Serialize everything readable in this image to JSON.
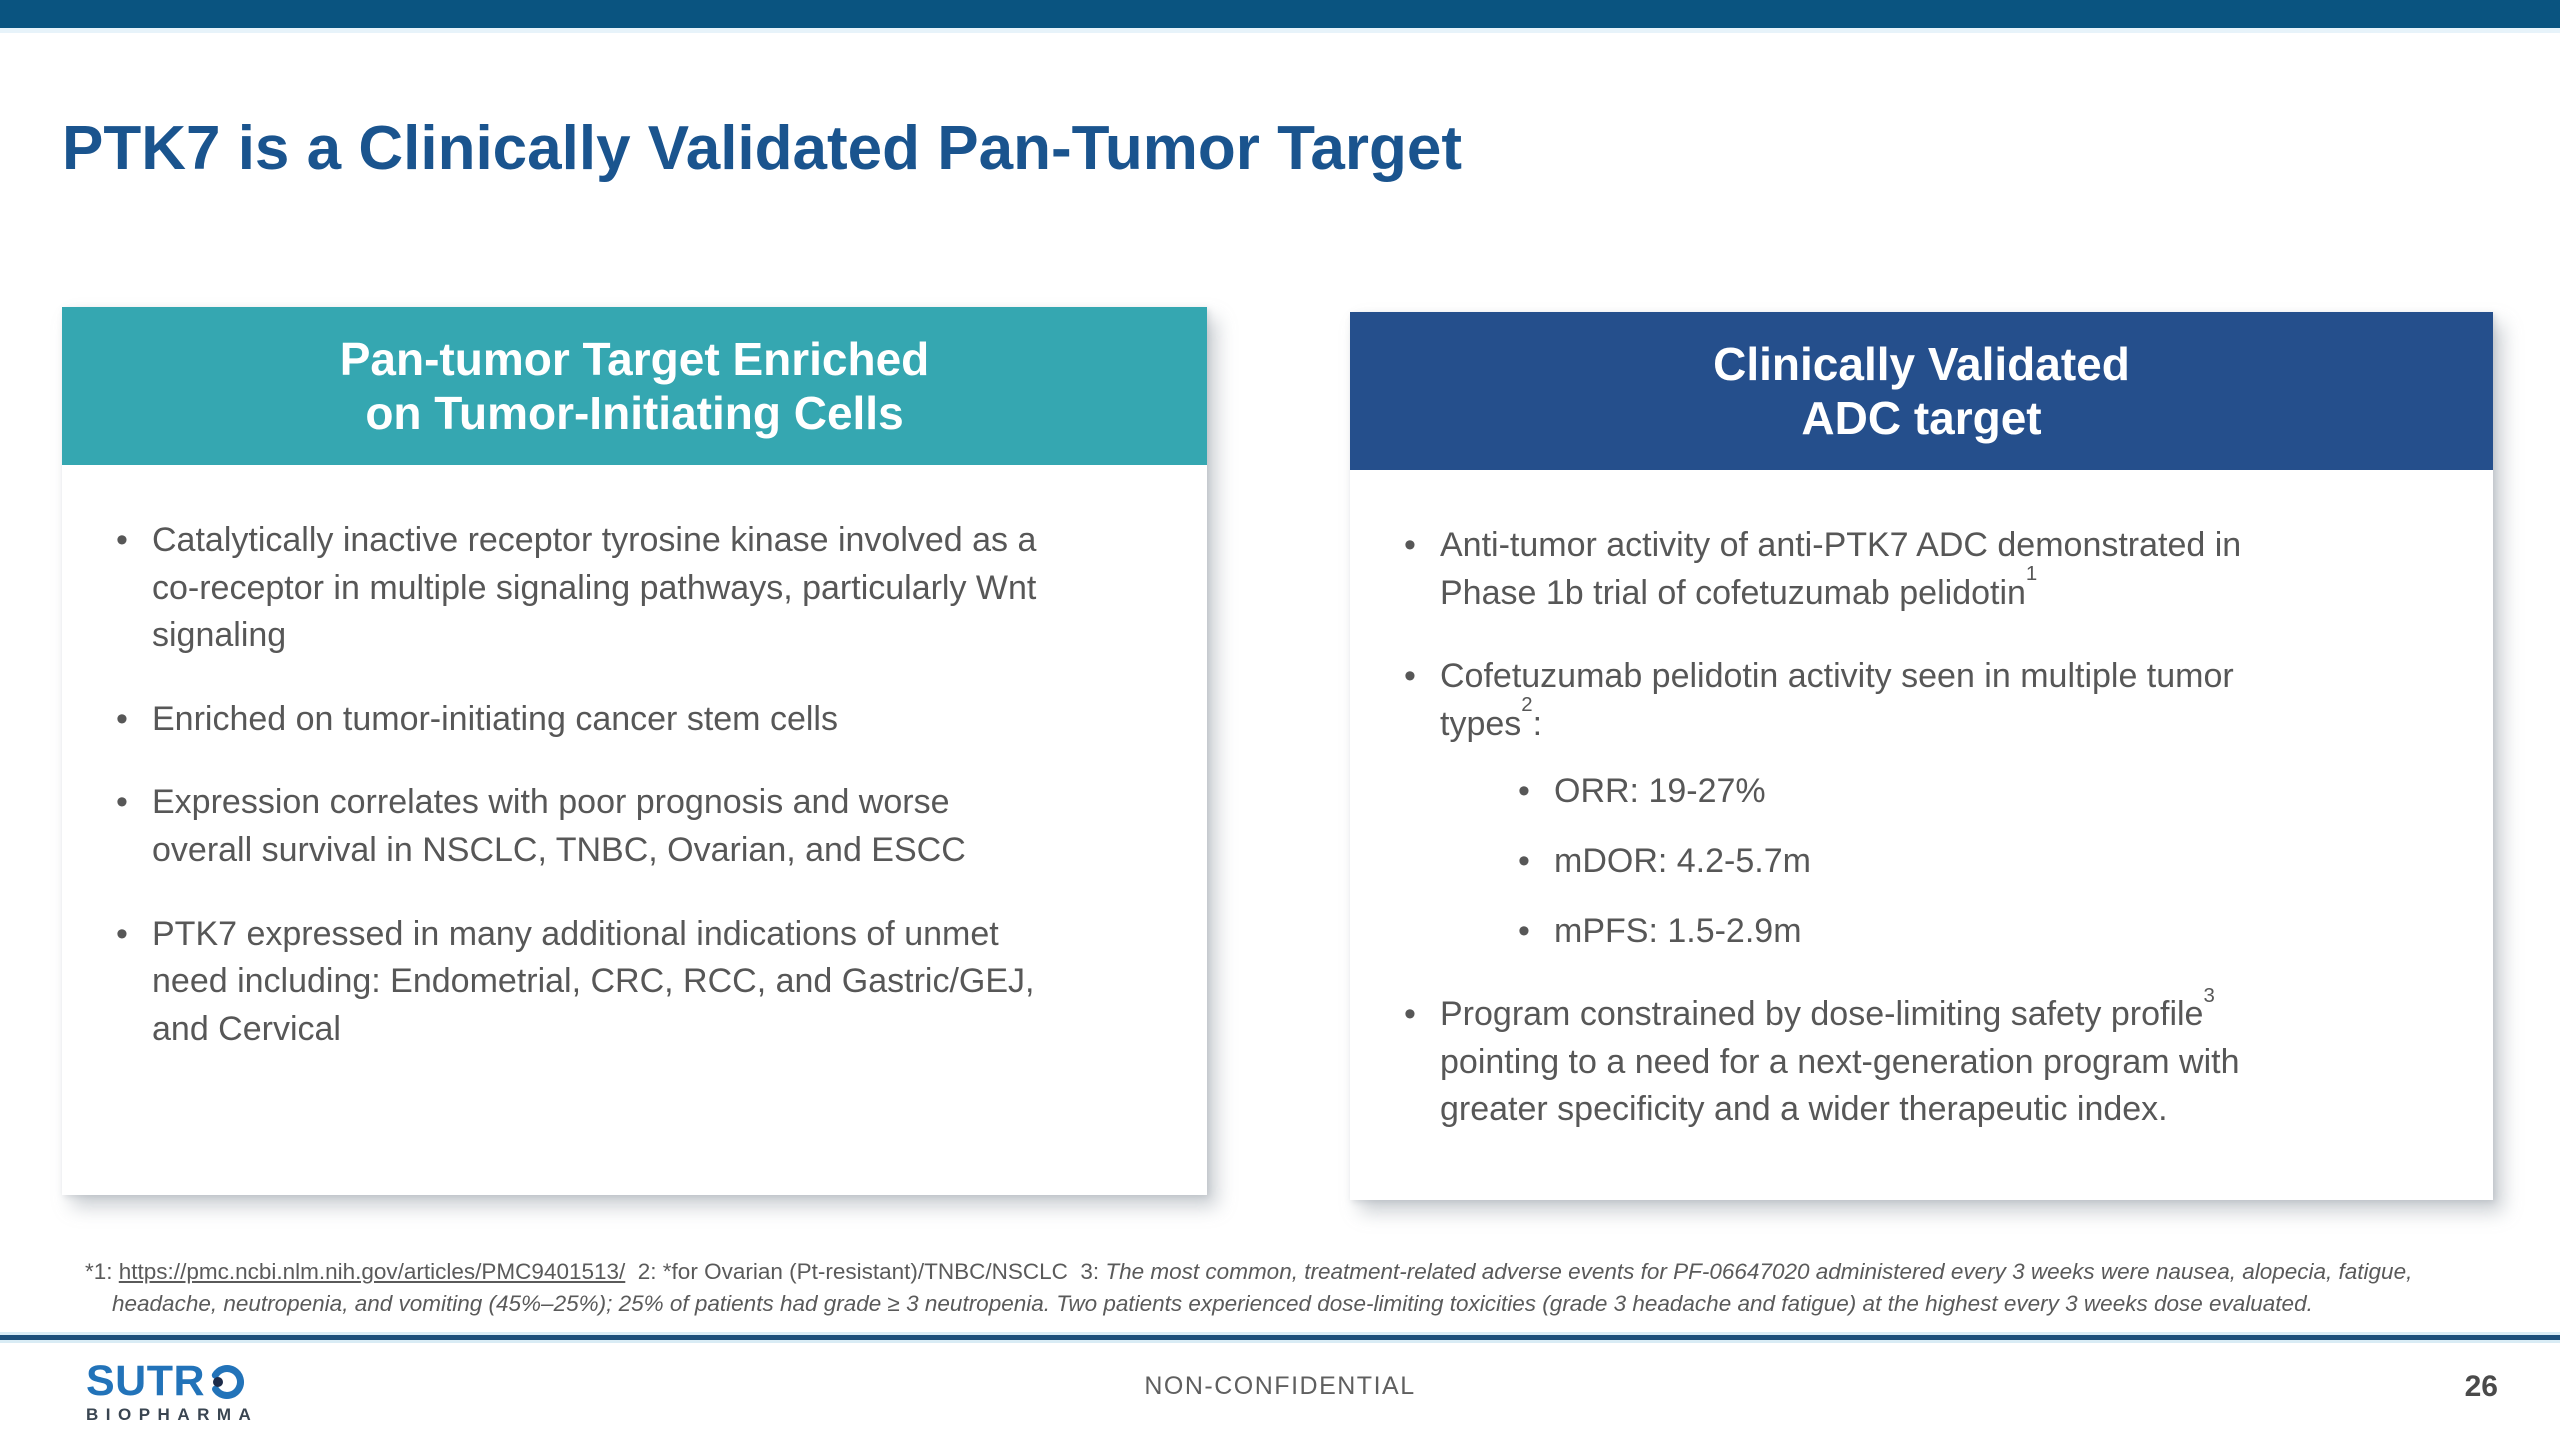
{
  "slide": {
    "title": "PTK7 is a Clinically Validated Pan-Tumor Target",
    "footer_label": "NON-CONFIDENTIAL",
    "page_number": "26"
  },
  "colors": {
    "top_bar": "#0A5480",
    "title_blue": "#1A548E",
    "teal_header": "#35A7B1",
    "navy_header": "#254F8C",
    "body_text": "#575757",
    "logo_blue": "#2273B9",
    "logo_navy": "#1C2B4A"
  },
  "left_card": {
    "header_line1": "Pan-tumor Target Enriched",
    "header_line2": "on Tumor-Initiating Cells",
    "bullets": [
      "Catalytically inactive receptor tyrosine kinase involved as a co-receptor in multiple signaling pathways, particularly Wnt signaling",
      "Enriched on tumor-initiating cancer stem cells",
      "Expression correlates with poor prognosis and worse overall survival in NSCLC, TNBC, Ovarian, and ESCC",
      "PTK7 expressed in many additional indications of unmet need including: Endometrial, CRC, RCC, and Gastric/GEJ, and Cervical"
    ]
  },
  "right_card": {
    "header_line1": "Clinically Validated",
    "header_line2": "ADC target",
    "bullets": [
      {
        "before": "Anti-tumor activity of anti-PTK7 ADC demonstrated in Phase 1b trial of cofetuzumab pelidotin",
        "sup": "1",
        "after": "",
        "subs": []
      },
      {
        "before": "Cofetuzumab pelidotin activity seen in multiple tumor types",
        "sup": "2",
        "after": ":",
        "subs": [
          "ORR: 19-27%",
          "mDOR: 4.2-5.7m",
          "mPFS: 1.5-2.9m"
        ]
      },
      {
        "before": "Program constrained by dose-limiting safety profile",
        "sup": "3",
        "after": " pointing to a need for a next-generation program with greater specificity and a wider therapeutic index.",
        "subs": []
      }
    ]
  },
  "footnote": {
    "prefix": "*1: ",
    "link": "https://pmc.ncbi.nlm.nih.gov/articles/PMC9401513/",
    "mid": "  2: *for Ovarian (Pt-resistant)/TNBC/NSCLC  3: ",
    "italic": "The most common, treatment-related adverse events for PF-06647020 administered every 3 weeks were nausea, alopecia, fatigue, headache, neutropenia, and vomiting (45%–25%); 25% of patients had grade ≥ 3 neutropenia. Two patients experienced dose-limiting toxicities (grade 3 headache and fatigue) at the highest every 3 weeks dose evaluated."
  },
  "logo": {
    "wordmark": "SUTR",
    "sub": "BIOPHARMA"
  }
}
